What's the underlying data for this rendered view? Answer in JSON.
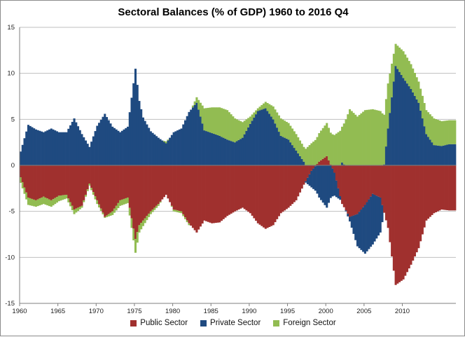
{
  "chart_data": {
    "type": "bar",
    "stacked": true,
    "title": "Sectoral Balances (% of GDP) 1960 to 2016 Q4",
    "xlabel": "",
    "ylabel": "",
    "ylim": [
      -15,
      15
    ],
    "yticks": [
      15,
      10,
      5,
      0,
      -5,
      -10,
      -15
    ],
    "xlim": [
      1960,
      2017
    ],
    "xtick_labels": [
      "1960",
      "1965",
      "1970",
      "1975",
      "1980",
      "1985",
      "1990",
      "1995",
      "2000",
      "2005",
      "2010"
    ],
    "grid": true,
    "legend_position": "bottom",
    "series": [
      {
        "name": "Public Sector",
        "color": "#a0302e",
        "points": [
          [
            1960,
            -1.3
          ],
          [
            1961,
            -3.5
          ],
          [
            1962,
            -3.8
          ],
          [
            1963,
            -3.4
          ],
          [
            1964,
            -3.8
          ],
          [
            1965,
            -3.3
          ],
          [
            1966,
            -3.2
          ],
          [
            1967,
            -4.8
          ],
          [
            1968,
            -4.4
          ],
          [
            1969,
            -2.0
          ],
          [
            1970,
            -3.8
          ],
          [
            1971,
            -5.6
          ],
          [
            1972,
            -5.0
          ],
          [
            1973,
            -3.8
          ],
          [
            1974,
            -3.5
          ],
          [
            1975,
            -8.0
          ],
          [
            1975.5,
            -6.5
          ],
          [
            1976,
            -6.0
          ],
          [
            1977,
            -5.0
          ],
          [
            1978,
            -4.2
          ],
          [
            1979,
            -3.2
          ],
          [
            1980,
            -4.8
          ],
          [
            1981,
            -5.0
          ],
          [
            1982,
            -6.3
          ],
          [
            1983,
            -7.3
          ],
          [
            1984,
            -6.0
          ],
          [
            1985,
            -6.3
          ],
          [
            1986,
            -6.2
          ],
          [
            1987,
            -5.5
          ],
          [
            1988,
            -5.0
          ],
          [
            1989,
            -4.6
          ],
          [
            1990,
            -5.2
          ],
          [
            1991,
            -6.3
          ],
          [
            1992,
            -6.9
          ],
          [
            1993,
            -6.5
          ],
          [
            1994,
            -5.2
          ],
          [
            1995,
            -4.6
          ],
          [
            1996,
            -3.8
          ],
          [
            1997,
            -2.1
          ],
          [
            1998,
            -0.6
          ],
          [
            1999,
            0.4
          ],
          [
            2000,
            1.0
          ],
          [
            2001,
            -0.8
          ],
          [
            2002,
            -4.2
          ],
          [
            2003,
            -5.6
          ],
          [
            2004,
            -5.3
          ],
          [
            2005,
            -4.3
          ],
          [
            2006,
            -3.1
          ],
          [
            2007,
            -3.5
          ],
          [
            2008,
            -6.8
          ],
          [
            2009,
            -13.0
          ],
          [
            2010,
            -12.4
          ],
          [
            2011,
            -10.8
          ],
          [
            2012,
            -9.0
          ],
          [
            2013,
            -6.0
          ],
          [
            2014,
            -5.2
          ],
          [
            2015,
            -4.8
          ],
          [
            2016,
            -4.9
          ]
        ]
      },
      {
        "name": "Private Sector",
        "color": "#1f4a80",
        "points": [
          [
            1960,
            1.5
          ],
          [
            1961,
            4.4
          ],
          [
            1962,
            3.9
          ],
          [
            1963,
            3.6
          ],
          [
            1964,
            4.0
          ],
          [
            1965,
            3.6
          ],
          [
            1966,
            3.6
          ],
          [
            1967,
            5.1
          ],
          [
            1968,
            3.4
          ],
          [
            1969,
            2.0
          ],
          [
            1970,
            4.3
          ],
          [
            1971,
            5.6
          ],
          [
            1972,
            4.2
          ],
          [
            1973,
            3.6
          ],
          [
            1974,
            4.2
          ],
          [
            1975,
            10.5
          ],
          [
            1975.5,
            7.0
          ],
          [
            1976,
            5.2
          ],
          [
            1977,
            3.7
          ],
          [
            1978,
            3.0
          ],
          [
            1979,
            2.4
          ],
          [
            1980,
            3.6
          ],
          [
            1981,
            4.0
          ],
          [
            1982,
            5.8
          ],
          [
            1983,
            6.8
          ],
          [
            1984,
            3.8
          ],
          [
            1985,
            3.5
          ],
          [
            1986,
            3.2
          ],
          [
            1987,
            2.8
          ],
          [
            1988,
            2.5
          ],
          [
            1989,
            3.0
          ],
          [
            1990,
            4.5
          ],
          [
            1991,
            5.9
          ],
          [
            1992,
            6.2
          ],
          [
            1993,
            5.0
          ],
          [
            1994,
            3.2
          ],
          [
            1995,
            2.8
          ],
          [
            1996,
            1.6
          ],
          [
            1997,
            0.4
          ],
          [
            1998,
            -1.8
          ],
          [
            1999,
            -3.5
          ],
          [
            2000,
            -4.6
          ],
          [
            2001,
            -2.5
          ],
          [
            2002,
            0.3
          ],
          [
            2003,
            -0.5
          ],
          [
            2004,
            -3.5
          ],
          [
            2005,
            -5.3
          ],
          [
            2006,
            -5.5
          ],
          [
            2007,
            -3.8
          ],
          [
            2008,
            4.0
          ],
          [
            2009,
            10.8
          ],
          [
            2010,
            9.5
          ],
          [
            2011,
            8.3
          ],
          [
            2012,
            6.8
          ],
          [
            2013,
            3.4
          ],
          [
            2014,
            2.2
          ],
          [
            2015,
            2.1
          ],
          [
            2016,
            2.3
          ]
        ]
      },
      {
        "name": "Foreign Sector",
        "color": "#92bc52",
        "points": [
          [
            1960,
            -0.6
          ],
          [
            1961,
            -0.8
          ],
          [
            1962,
            -0.7
          ],
          [
            1963,
            -0.8
          ],
          [
            1964,
            -0.7
          ],
          [
            1965,
            -0.6
          ],
          [
            1966,
            -0.4
          ],
          [
            1967,
            -0.5
          ],
          [
            1968,
            -0.2
          ],
          [
            1969,
            -0.2
          ],
          [
            1970,
            -0.4
          ],
          [
            1971,
            -0.1
          ],
          [
            1972,
            -0.4
          ],
          [
            1973,
            -0.6
          ],
          [
            1974,
            -0.6
          ],
          [
            1975,
            -1.5
          ],
          [
            1975.5,
            -0.8
          ],
          [
            1976,
            -0.6
          ],
          [
            1977,
            -0.3
          ],
          [
            1978,
            -0.2
          ],
          [
            1979,
            0.2
          ],
          [
            1980,
            -0.2
          ],
          [
            1981,
            -0.2
          ],
          [
            1982,
            -0.2
          ],
          [
            1983,
            0.6
          ],
          [
            1984,
            2.4
          ],
          [
            1985,
            2.8
          ],
          [
            1986,
            3.1
          ],
          [
            1987,
            3.2
          ],
          [
            1988,
            2.6
          ],
          [
            1989,
            1.7
          ],
          [
            1990,
            0.8
          ],
          [
            1991,
            0.3
          ],
          [
            1992,
            0.7
          ],
          [
            1993,
            1.4
          ],
          [
            1994,
            1.9
          ],
          [
            1995,
            1.8
          ],
          [
            1996,
            1.8
          ],
          [
            1997,
            1.6
          ],
          [
            1998,
            2.4
          ],
          [
            1999,
            3.1
          ],
          [
            2000,
            3.6
          ],
          [
            2001,
            3.3
          ],
          [
            2002,
            3.9
          ],
          [
            2003,
            6.1
          ],
          [
            2004,
            5.3
          ],
          [
            2005,
            6.0
          ],
          [
            2006,
            6.1
          ],
          [
            2007,
            5.9
          ],
          [
            2008,
            4.9
          ],
          [
            2009,
            2.4
          ],
          [
            2010,
            2.9
          ],
          [
            2011,
            2.7
          ],
          [
            2012,
            2.3
          ],
          [
            2013,
            2.6
          ],
          [
            2014,
            2.9
          ],
          [
            2015,
            2.7
          ],
          [
            2016,
            2.6
          ]
        ]
      }
    ]
  }
}
